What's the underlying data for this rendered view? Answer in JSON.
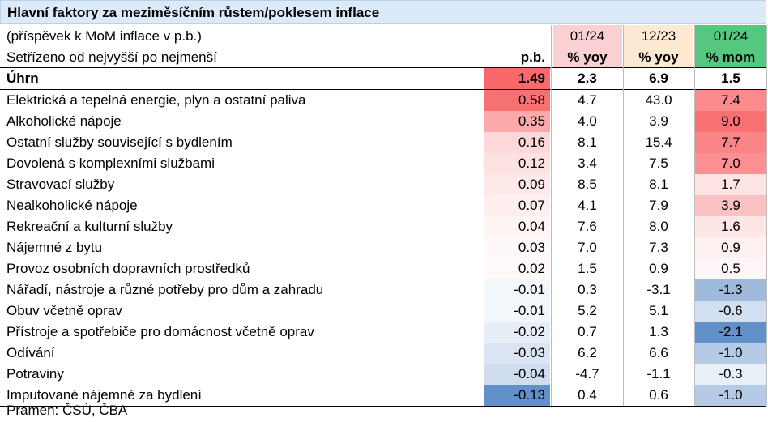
{
  "title": "Hlavní faktory za meziměsíčním růstem/poklesem inflace",
  "subtitle": "(příspěvek k MoM inflace v p.b.)",
  "sort_note": "Setřízeno od nejvyšší po nejmenší",
  "columns": [
    {
      "top": "",
      "bottom": "p.b."
    },
    {
      "top": "01/24",
      "bottom": "% yoy"
    },
    {
      "top": "12/23",
      "bottom": "% yoy"
    },
    {
      "top": "01/24",
      "bottom": "% mom"
    }
  ],
  "header_colors": [
    "#ffffff",
    "#fbd0d2",
    "#fde9d1",
    "#55c77f"
  ],
  "chart_data": {
    "type": "table",
    "total": {
      "label": "Úhrn",
      "pb": "1.49",
      "yoy_0124": "2.3",
      "yoy_1223": "6.9",
      "mom_0124": "1.5"
    },
    "rows": [
      {
        "label": "Elektrická a tepelná energie, plyn a ostatní paliva",
        "pb": "0.58",
        "yoy_0124": "4.7",
        "yoy_1223": "43.0",
        "mom_0124": "7.4"
      },
      {
        "label": "Alkoholické nápoje",
        "pb": "0.35",
        "yoy_0124": "4.0",
        "yoy_1223": "3.9",
        "mom_0124": "9.0"
      },
      {
        "label": "Ostatní služby související s bydlením",
        "pb": "0.16",
        "yoy_0124": "8.1",
        "yoy_1223": "15.4",
        "mom_0124": "7.7"
      },
      {
        "label": "Dovolená s komplexními službami",
        "pb": "0.12",
        "yoy_0124": "3.4",
        "yoy_1223": "7.5",
        "mom_0124": "7.0"
      },
      {
        "label": "Stravovací služby",
        "pb": "0.09",
        "yoy_0124": "8.5",
        "yoy_1223": "8.1",
        "mom_0124": "1.7"
      },
      {
        "label": "Nealkoholické nápoje",
        "pb": "0.07",
        "yoy_0124": "4.1",
        "yoy_1223": "7.9",
        "mom_0124": "3.9"
      },
      {
        "label": "Rekreační a kulturní služby",
        "pb": "0.04",
        "yoy_0124": "7.6",
        "yoy_1223": "8.0",
        "mom_0124": "1.6"
      },
      {
        "label": "Nájemné z bytu",
        "pb": "0.03",
        "yoy_0124": "7.0",
        "yoy_1223": "7.3",
        "mom_0124": "0.9"
      },
      {
        "label": "Provoz osobních dopravních prostředků",
        "pb": "0.02",
        "yoy_0124": "1.5",
        "yoy_1223": "0.9",
        "mom_0124": "0.5"
      },
      {
        "label": "Nářadí, nástroje a různé potřeby pro dům a zahradu",
        "pb": "-0.01",
        "yoy_0124": "0.3",
        "yoy_1223": "-3.1",
        "mom_0124": "-1.3"
      },
      {
        "label": "Obuv včetně oprav",
        "pb": "-0.01",
        "yoy_0124": "5.2",
        "yoy_1223": "5.1",
        "mom_0124": "-0.6"
      },
      {
        "label": "Přístroje a spotřebiče pro domácnost včetně oprav",
        "pb": "-0.02",
        "yoy_0124": "0.7",
        "yoy_1223": "1.3",
        "mom_0124": "-2.1"
      },
      {
        "label": "Odívání",
        "pb": "-0.03",
        "yoy_0124": "6.2",
        "yoy_1223": "6.6",
        "mom_0124": "-1.0"
      },
      {
        "label": "Potraviny",
        "pb": "-0.04",
        "yoy_0124": "-4.7",
        "yoy_1223": "-1.1",
        "mom_0124": "-0.3"
      },
      {
        "label": "Imputované nájemné za bydlení",
        "pb": "-0.13",
        "yoy_0124": "0.4",
        "yoy_1223": "0.6",
        "mom_0124": "-1.0"
      }
    ]
  },
  "heat_colors": {
    "positive": "#f8696b",
    "negative": "#5a8ac6",
    "neutral": "#ffffff",
    "total_pb": "#f8696b"
  },
  "source": "Pramen: ČSÚ, ČBA"
}
